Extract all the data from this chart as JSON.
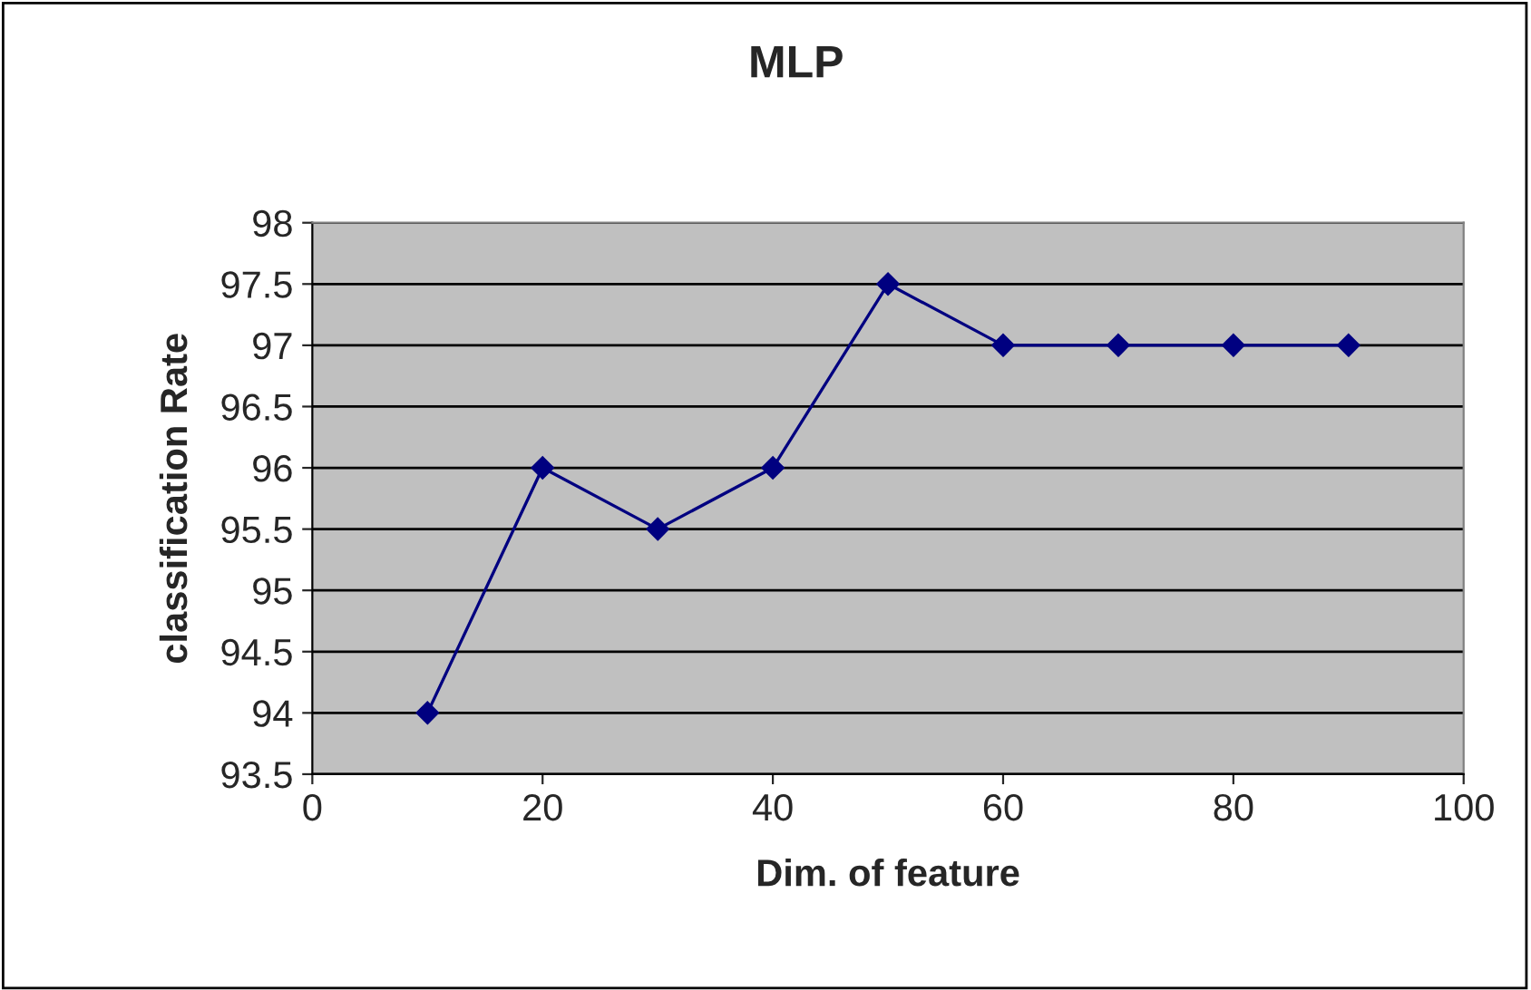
{
  "chart_data": {
    "type": "line",
    "title": "MLP",
    "xlabel": "Dim. of feature",
    "ylabel": "classification Rate",
    "x": [
      10,
      20,
      30,
      40,
      50,
      60,
      70,
      80,
      90
    ],
    "series": [
      {
        "color": "#000080",
        "values": [
          94,
          96,
          95.5,
          96,
          97.5,
          97,
          97,
          97,
          97
        ]
      }
    ],
    "xlim": [
      0,
      100
    ],
    "xticks": [
      0,
      20,
      40,
      60,
      80,
      100
    ],
    "ylim": [
      93.5,
      98
    ],
    "yticks": [
      93.5,
      94,
      94.5,
      95,
      95.5,
      96,
      96.5,
      97,
      97.5,
      98
    ],
    "grid": "y",
    "marker": "diamond",
    "line_style": "solid",
    "legend": false
  }
}
